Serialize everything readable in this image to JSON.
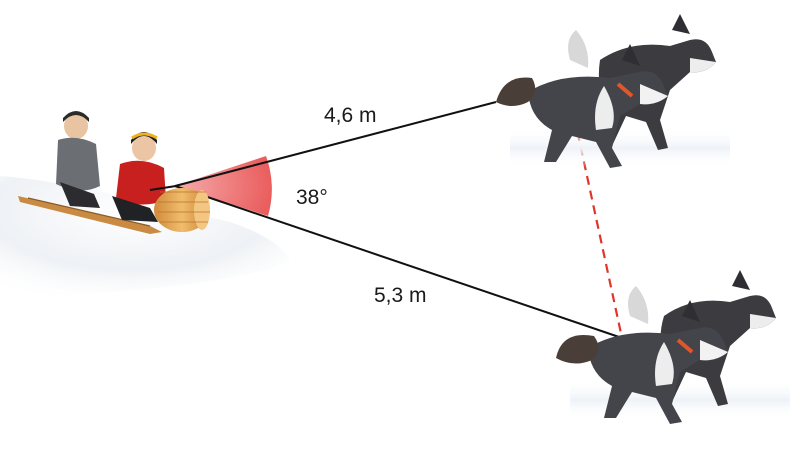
{
  "labels": {
    "upper_rope_length": "4,6 m",
    "lower_rope_length": "5,3 m",
    "angle": "38°"
  },
  "colors": {
    "angle_sector": "#ef5b5b",
    "dashed_line": "#e0352b",
    "rope": "#111111",
    "snow": "#eef1f5",
    "toboggan": "#e3a552",
    "jacket_red": "#c8201e",
    "jacket_grey": "#6b6f73",
    "dog_dark": "#3b3b40",
    "dog_light": "#ededed",
    "harness_orange": "#e2572a"
  },
  "icons": [
    "children-on-toboggan",
    "sled-dog-pair-upper",
    "sled-dog-pair-lower"
  ]
}
